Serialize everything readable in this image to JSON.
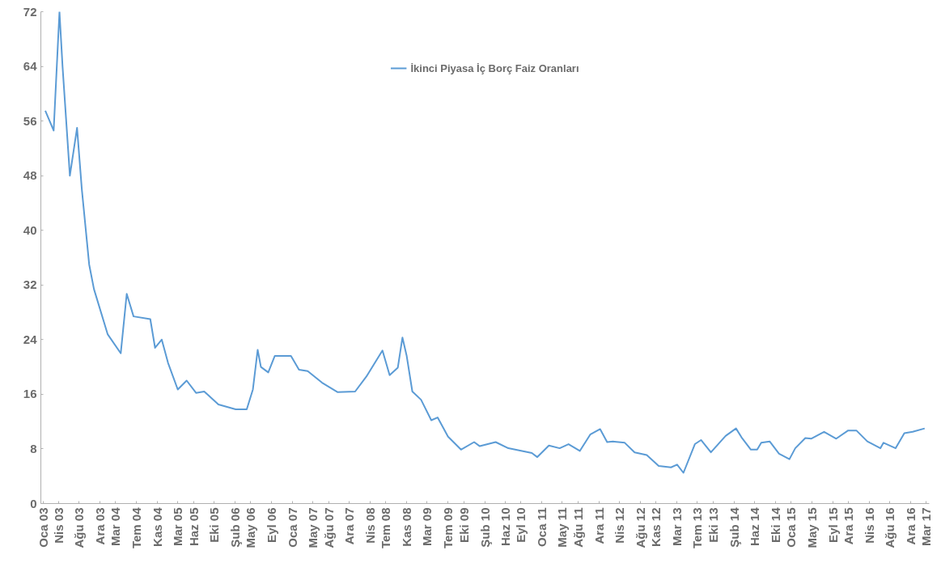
{
  "chart_data": {
    "type": "line",
    "legend": "top",
    "grid": false,
    "marker": "none",
    "line_style": "solid",
    "xlim": [
      "2002-12-20",
      "2017-03-20"
    ],
    "xticks": [
      {
        "value": "2003-01",
        "label": "Oca 03"
      },
      {
        "value": "2003-04",
        "label": "Nis 03"
      },
      {
        "value": "2003-08",
        "label": "Ağu 03"
      },
      {
        "value": "2003-12",
        "label": "Ara 03"
      },
      {
        "value": "2004-03",
        "label": "Mar 04"
      },
      {
        "value": "2004-07",
        "label": "Tem 04"
      },
      {
        "value": "2004-11",
        "label": "Kas 04"
      },
      {
        "value": "2005-03",
        "label": "Mar 05"
      },
      {
        "value": "2005-06",
        "label": "Haz 05"
      },
      {
        "value": "2005-10",
        "label": "Eki 05"
      },
      {
        "value": "2006-02",
        "label": "Şub 06"
      },
      {
        "value": "2006-05",
        "label": "May 06"
      },
      {
        "value": "2006-09",
        "label": "Eyl 06"
      },
      {
        "value": "2007-01",
        "label": "Oca 07"
      },
      {
        "value": "2007-05",
        "label": "May 07"
      },
      {
        "value": "2007-08",
        "label": "Ağu 07"
      },
      {
        "value": "2007-12",
        "label": "Ara 07"
      },
      {
        "value": "2008-04",
        "label": "Nis 08"
      },
      {
        "value": "2008-07",
        "label": "Tem 08"
      },
      {
        "value": "2008-11",
        "label": "Kas 08"
      },
      {
        "value": "2009-03",
        "label": "Mar 09"
      },
      {
        "value": "2009-07",
        "label": "Tem 09"
      },
      {
        "value": "2009-10",
        "label": "Eki 09"
      },
      {
        "value": "2010-02",
        "label": "Şub 10"
      },
      {
        "value": "2010-06",
        "label": "Haz 10"
      },
      {
        "value": "2010-09",
        "label": "Eyl 10"
      },
      {
        "value": "2011-01",
        "label": "Oca 11"
      },
      {
        "value": "2011-05",
        "label": "May 11"
      },
      {
        "value": "2011-08",
        "label": "Ağu 11"
      },
      {
        "value": "2011-12",
        "label": "Ara 11"
      },
      {
        "value": "2012-04",
        "label": "Nis 12"
      },
      {
        "value": "2012-08",
        "label": "Ağu 12"
      },
      {
        "value": "2012-11",
        "label": "Kas 12"
      },
      {
        "value": "2013-03",
        "label": "Mar 13"
      },
      {
        "value": "2013-07",
        "label": "Tem 13"
      },
      {
        "value": "2013-10",
        "label": "Eki 13"
      },
      {
        "value": "2014-02",
        "label": "Şub 14"
      },
      {
        "value": "2014-06",
        "label": "Haz 14"
      },
      {
        "value": "2014-10",
        "label": "Eki 14"
      },
      {
        "value": "2015-01",
        "label": "Oca 15"
      },
      {
        "value": "2015-05",
        "label": "May 15"
      },
      {
        "value": "2015-09",
        "label": "Eyl 15"
      },
      {
        "value": "2015-12",
        "label": "Ara 15"
      },
      {
        "value": "2016-04",
        "label": "Nis 16"
      },
      {
        "value": "2016-08",
        "label": "Ağu 16"
      },
      {
        "value": "2016-12",
        "label": "Ara 16"
      },
      {
        "value": "2017-03",
        "label": "Mar 17"
      }
    ],
    "ylim": [
      0,
      72
    ],
    "yticks": [
      0,
      8,
      16,
      24,
      32,
      40,
      48,
      56,
      64,
      72
    ],
    "series": [
      {
        "name": "İkinci Piyasa İç Borç Faiz Oranları",
        "color": "#5b9bd5",
        "x": [
          "2003-01-15",
          "2003-03-05",
          "2003-04-08",
          "2003-04-26",
          "2003-06-08",
          "2003-07-20",
          "2003-08-17",
          "2003-09-29",
          "2003-10-27",
          "2004-01-15",
          "2004-04-01",
          "2004-05-06",
          "2004-06-15",
          "2004-09-21",
          "2004-10-19",
          "2004-11-27",
          "2005-01-03",
          "2005-03-01",
          "2005-04-22",
          "2005-06-16",
          "2005-08-03",
          "2005-10-25",
          "2006-02-03",
          "2006-04-09",
          "2006-05-15",
          "2006-06-12",
          "2006-07-01",
          "2006-08-13",
          "2006-09-20",
          "2006-12-24",
          "2007-02-09",
          "2007-04-01",
          "2007-06-24",
          "2007-09-24",
          "2008-01-04",
          "2008-03-10",
          "2008-06-12",
          "2008-07-24",
          "2008-09-10",
          "2008-10-07",
          "2008-11-01",
          "2008-12-04",
          "2009-01-24",
          "2009-03-25",
          "2009-05-01",
          "2009-07-01",
          "2009-09-15",
          "2009-12-01",
          "2010-01-03",
          "2010-04-06",
          "2010-06-19",
          "2010-11-04",
          "2010-12-06",
          "2011-02-12",
          "2011-04-16",
          "2011-06-07",
          "2011-08-12",
          "2011-10-12",
          "2011-12-09",
          "2012-01-19",
          "2012-02-22",
          "2012-05-01",
          "2012-06-28",
          "2012-09-07",
          "2012-11-16",
          "2013-01-27",
          "2013-03-04",
          "2013-04-10",
          "2013-06-16",
          "2013-07-22",
          "2013-09-18",
          "2013-12-13",
          "2014-02-12",
          "2014-03-16",
          "2014-05-10",
          "2014-06-16",
          "2014-07-10",
          "2014-08-28",
          "2014-10-22",
          "2014-12-22",
          "2015-01-25",
          "2015-03-25",
          "2015-04-28",
          "2015-07-13",
          "2015-09-22",
          "2015-12-01",
          "2016-01-18",
          "2016-03-22",
          "2016-06-07",
          "2016-06-25",
          "2016-09-04",
          "2016-10-25",
          "2016-12-13",
          "2017-02-21"
        ],
        "values": [
          57.5,
          54.6,
          72,
          64,
          48,
          55,
          46,
          35,
          31.4,
          24.8,
          22,
          30.7,
          27.4,
          27,
          22.8,
          24,
          20.6,
          16.7,
          18,
          16.2,
          16.4,
          14.5,
          13.8,
          13.8,
          16.7,
          22.5,
          20,
          19.2,
          21.6,
          21.6,
          19.6,
          19.4,
          17.7,
          16.3,
          16.4,
          18.6,
          22.4,
          18.8,
          19.9,
          24.3,
          21.6,
          16.4,
          15.2,
          12.2,
          12.6,
          9.8,
          7.9,
          9,
          8.4,
          9,
          8.1,
          7.4,
          6.8,
          8.5,
          8.1,
          8.7,
          7.7,
          10.1,
          10.9,
          9,
          9.1,
          8.9,
          7.5,
          7.1,
          5.5,
          5.3,
          5.7,
          4.5,
          8.7,
          9.3,
          7.5,
          9.9,
          11,
          9.7,
          7.9,
          7.9,
          8.9,
          9.1,
          7.3,
          6.5,
          8.1,
          9.6,
          9.5,
          10.5,
          9.5,
          10.7,
          10.7,
          9.1,
          8.1,
          8.9,
          8.1,
          10.3,
          10.5,
          11
        ]
      }
    ]
  }
}
